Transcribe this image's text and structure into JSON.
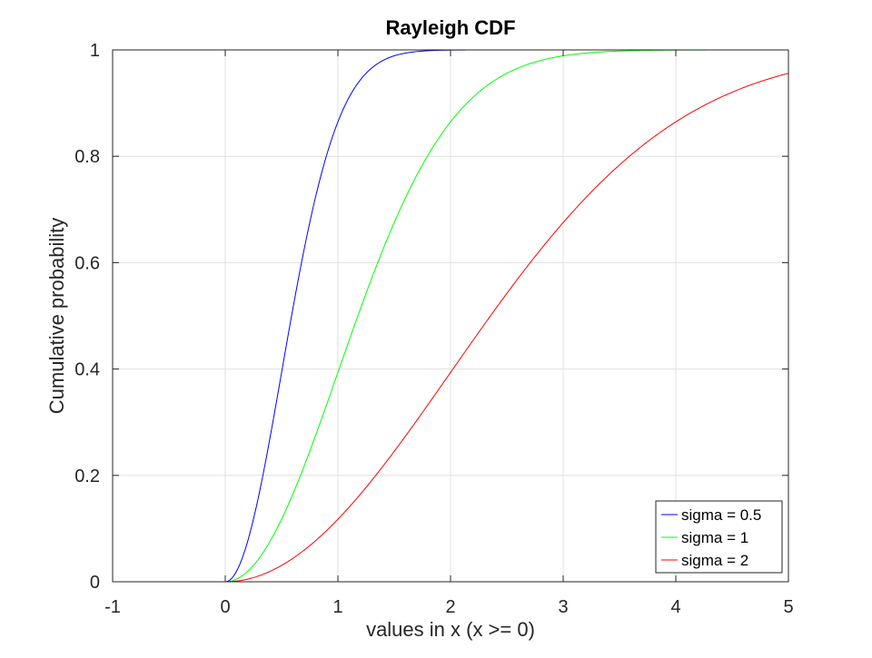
{
  "chart_data": {
    "type": "line",
    "title": "Rayleigh CDF",
    "xlabel": "values in x (x >= 0)",
    "ylabel": "Cumulative probability",
    "xlim": [
      -1,
      5
    ],
    "ylim": [
      0,
      1
    ],
    "xticks": [
      -1,
      0,
      1,
      2,
      3,
      4,
      5
    ],
    "yticks": [
      0,
      0.2,
      0.4,
      0.6,
      0.8,
      1
    ],
    "xtick_labels": [
      "-1",
      "0",
      "1",
      "2",
      "3",
      "4",
      "5"
    ],
    "ytick_labels": [
      "0",
      "0.2",
      "0.4",
      "0.6",
      "0.8",
      "1"
    ],
    "grid": true,
    "legend_position": "bottom-right",
    "x": [
      -1.0,
      -0.5,
      0.0,
      0.1,
      0.2,
      0.3,
      0.4,
      0.5,
      0.6,
      0.7,
      0.8,
      0.9,
      1.0,
      1.2,
      1.4,
      1.6,
      1.8,
      2.0,
      2.2,
      2.4,
      2.6,
      2.8,
      3.0,
      3.2,
      3.4,
      3.6,
      3.8,
      4.0,
      4.2,
      4.4,
      4.6,
      4.8,
      5.0
    ],
    "series": [
      {
        "name": "sigma = 0.5",
        "color": "#0000ff",
        "x_end": 3.6,
        "values": [
          0,
          0,
          0,
          0.0198,
          0.0769,
          0.1647,
          0.2739,
          0.3935,
          0.5132,
          0.6247,
          0.722,
          0.8021,
          0.8647,
          0.9439,
          0.9802,
          0.994,
          0.9985,
          0.9997,
          0.9999,
          1.0,
          1.0,
          1.0,
          1.0,
          1.0,
          1.0,
          1.0,
          null,
          null,
          null,
          null,
          null,
          null,
          null
        ]
      },
      {
        "name": "sigma = 1",
        "color": "#00ff00",
        "values": [
          0,
          0,
          0,
          0.005,
          0.0198,
          0.044,
          0.0769,
          0.1175,
          0.1647,
          0.2173,
          0.2739,
          0.333,
          0.3935,
          0.5132,
          0.6247,
          0.722,
          0.8021,
          0.8647,
          0.9111,
          0.9439,
          0.966,
          0.9802,
          0.9889,
          0.994,
          0.9969,
          0.9985,
          0.9993,
          0.9997,
          0.9999,
          0.9999,
          1.0,
          1.0,
          1.0
        ]
      },
      {
        "name": "sigma = 2",
        "color": "#ff0000",
        "values": [
          0,
          0,
          0,
          0.0012,
          0.005,
          0.0112,
          0.0198,
          0.0308,
          0.044,
          0.0594,
          0.0769,
          0.0963,
          0.1175,
          0.1647,
          0.2173,
          0.2739,
          0.333,
          0.3935,
          0.4539,
          0.5132,
          0.5704,
          0.6247,
          0.6753,
          0.722,
          0.7643,
          0.8021,
          0.8355,
          0.8647,
          0.8897,
          0.9111,
          0.929,
          0.9439,
          0.9561
        ]
      }
    ]
  }
}
